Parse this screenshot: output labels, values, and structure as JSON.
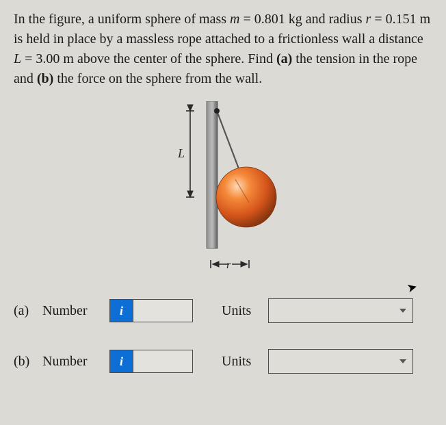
{
  "problem": {
    "text_html": "In the figure, a uniform sphere of mass <em>m</em> = 0.801 kg and radius <em>r</em> = 0.151 m is held in place by a massless rope attached to a frictionless wall a distance <em>L</em> = 3.00 m above the center of the sphere. Find <b>(a)</b> the tension in the rope and <b>(b)</b> the force on the sphere from the wall."
  },
  "figure": {
    "L_label": "L",
    "r_label": "r",
    "wall_color": "#6f6f6f",
    "wall_highlight": "#a3a3a3",
    "sphere_gradient_inner": "#ffb77a",
    "sphere_gradient_mid": "#e8651f",
    "sphere_gradient_outer": "#a83b0d",
    "rope_color": "#555555",
    "arrow_color": "#2a2a2a",
    "bg": "#dcdad5"
  },
  "answers": {
    "a": {
      "part": "(a)",
      "number_label": "Number",
      "info_icon": "i",
      "value": "",
      "units_label": "Units",
      "units_value": ""
    },
    "b": {
      "part": "(b)",
      "number_label": "Number",
      "info_icon": "i",
      "value": "",
      "units_label": "Units",
      "units_value": ""
    }
  }
}
